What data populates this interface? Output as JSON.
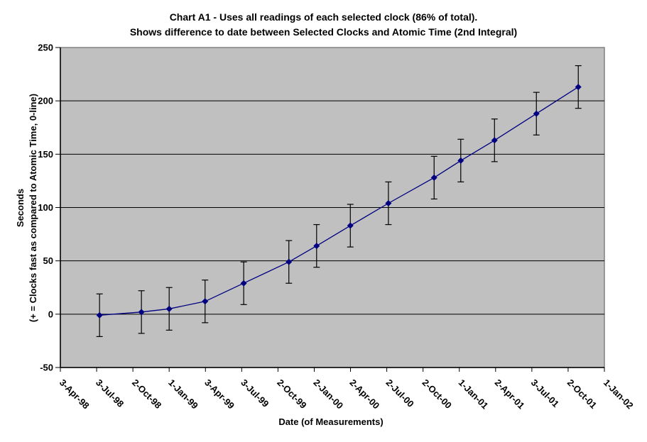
{
  "chart": {
    "title_line1": "Chart A1 - Uses all readings of each selected clock (86% of total).",
    "title_line2": "Shows difference to date between Selected Clocks and Atomic Time (2nd Integral)",
    "x_axis_title": "Date (of Measurements)",
    "y_axis_title_line1": "Seconds",
    "y_axis_title_line2": "(+ = Clocks fast as compared to Atomic Time, 0-line)"
  },
  "chart_data": {
    "type": "line",
    "title": "Chart A1 - Uses all readings of each selected clock (86% of total). Shows difference to date between Selected Clocks and Atomic Time (2nd Integral)",
    "xlabel": "Date (of Measurements)",
    "ylabel": "Seconds (+ = Clocks fast as compared to Atomic Time, 0-line)",
    "ylim": [
      -50,
      250
    ],
    "y_ticks": [
      250,
      200,
      150,
      100,
      50,
      0,
      -50
    ],
    "x_tick_labels": [
      "3-Apr-98",
      "3-Jul-98",
      "2-Oct-98",
      "1-Jan-99",
      "3-Apr-99",
      "3-Jul-99",
      "2-Oct-99",
      "2-Jan-00",
      "2-Apr-00",
      "2-Jul-00",
      "2-Oct-00",
      "1-Jan-01",
      "2-Apr-01",
      "3-Jul-01",
      "2-Oct-01",
      "1-Jan-02"
    ],
    "grid": "horizontal-only",
    "legend": "none",
    "marker": "diamond",
    "error_bars": "symmetric, approx plus-minus 20 seconds, black with caps",
    "series": [
      {
        "name": "Selected Clocks minus Atomic Time (2nd Integral)",
        "color": "#000080",
        "points": [
          {
            "x_frac": 0.072,
            "near_tick": "3-Jul-98",
            "value": -1,
            "err": 20
          },
          {
            "x_frac": 0.149,
            "near_tick": "2-Oct-98",
            "value": 2,
            "err": 20
          },
          {
            "x_frac": 0.2,
            "near_tick": "1-Jan-99",
            "value": 5,
            "err": 20
          },
          {
            "x_frac": 0.266,
            "near_tick": "3-Apr-99",
            "value": 12,
            "err": 20
          },
          {
            "x_frac": 0.337,
            "near_tick": "3-Jul-99",
            "value": 29,
            "err": 20
          },
          {
            "x_frac": 0.42,
            "near_tick": "2-Oct-99",
            "value": 49,
            "err": 20
          },
          {
            "x_frac": 0.471,
            "near_tick": "2-Jan-00",
            "value": 64,
            "err": 20
          },
          {
            "x_frac": 0.533,
            "near_tick": "2-Apr-00",
            "value": 83,
            "err": 20
          },
          {
            "x_frac": 0.603,
            "near_tick": "2-Jul-00",
            "value": 104,
            "err": 20
          },
          {
            "x_frac": 0.687,
            "near_tick": "2-Oct-00",
            "value": 128,
            "err": 20
          },
          {
            "x_frac": 0.736,
            "near_tick": "1-Jan-01",
            "value": 144,
            "err": 20
          },
          {
            "x_frac": 0.798,
            "near_tick": "2-Apr-01",
            "value": 163,
            "err": 20
          },
          {
            "x_frac": 0.875,
            "near_tick": "3-Jul-01",
            "value": 188,
            "err": 20
          },
          {
            "x_frac": 0.952,
            "near_tick": "2-Oct-01",
            "value": 213,
            "err": 20
          }
        ]
      }
    ],
    "colors": {
      "line": "#000080",
      "marker": "#000080",
      "error_bar": "#000000",
      "plot_bg": "#c0c0c0",
      "plot_border": "#808080",
      "grid": "#000000",
      "axis": "#000000",
      "text": "#000000",
      "page_bg": "#ffffff"
    }
  }
}
